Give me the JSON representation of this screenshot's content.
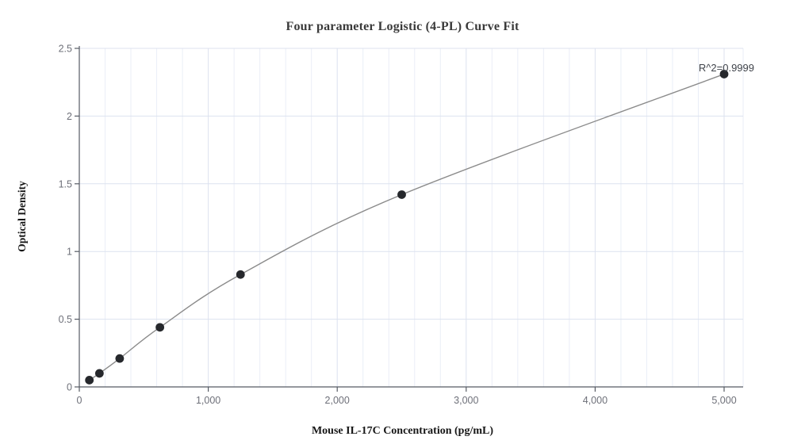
{
  "chart_data": {
    "type": "scatter",
    "title": "Four parameter Logistic (4-PL) Curve Fit",
    "xlabel": "Mouse IL-17C Concentration (pg/mL)",
    "ylabel": "Optical Density",
    "annotation": "R^2=0.9999",
    "series": [
      {
        "name": "Standard curve points",
        "x": [
          78,
          156,
          313,
          625,
          1250,
          2500,
          5000
        ],
        "y": [
          0.05,
          0.1,
          0.21,
          0.44,
          0.83,
          1.42,
          2.31
        ]
      }
    ],
    "fit_line": "4-PL smooth curve through all points, from first point to last point",
    "xlim": [
      0,
      5150
    ],
    "ylim": [
      0,
      2.5
    ],
    "x_ticks": {
      "values": [
        0,
        1000,
        2000,
        3000,
        4000,
        5000
      ],
      "labels": [
        "0",
        "1,000",
        "2,000",
        "3,000",
        "4,000",
        "5,000"
      ]
    },
    "x_minor_grid_step": 200,
    "y_ticks": {
      "values": [
        0,
        0.5,
        1,
        1.5,
        2,
        2.5
      ],
      "labels": [
        "0",
        "0.5",
        "1",
        "1.5",
        "2",
        "2.5"
      ]
    },
    "grid": "on",
    "legend": "none",
    "colors": {
      "point": "#26282c",
      "curve": "#8b8b8b",
      "grid_minor": "#eaeef7",
      "grid_major": "#dce2ef",
      "axis_line": "#565b64",
      "tick_label": "#6e7079",
      "title": "#3a3a3a",
      "axis_title": "#161616",
      "annotation": "#3f434a",
      "background": "#ffffff"
    }
  }
}
